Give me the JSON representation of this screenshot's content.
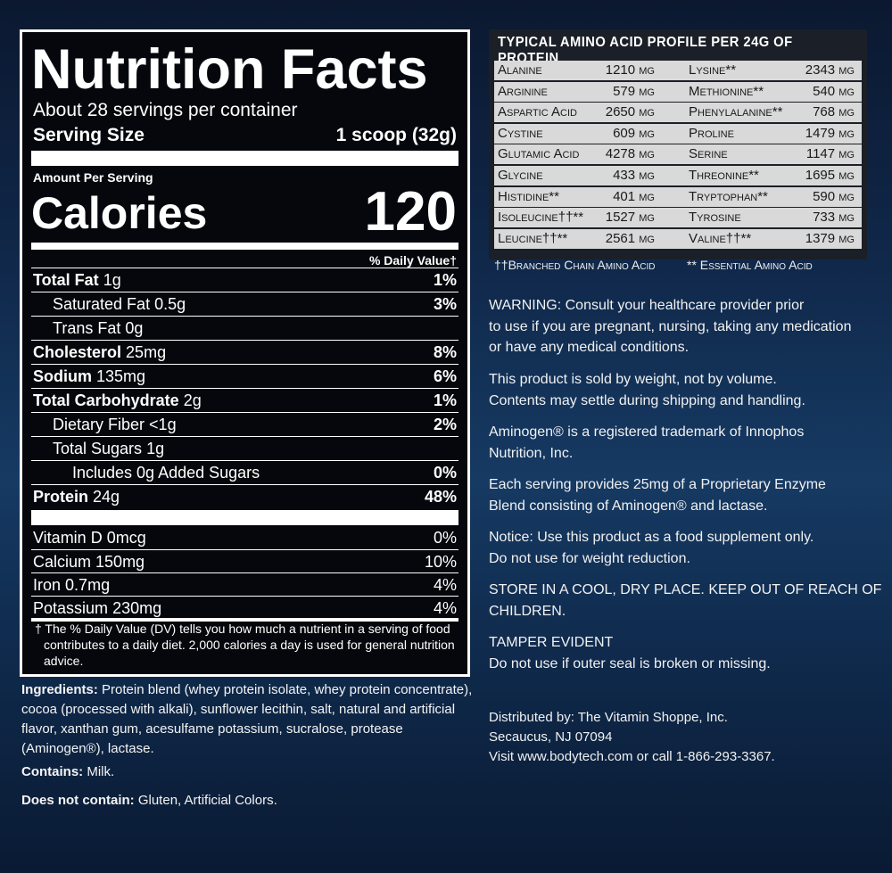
{
  "nutrition": {
    "title": "Nutrition Facts",
    "servings": "About 28 servings per container",
    "serving_size_label": "Serving Size",
    "serving_size": "1 scoop (32g)",
    "amount_per_serving": "Amount Per Serving",
    "calories_label": "Calories",
    "calories": "120",
    "dv_header": "% Daily Value†",
    "nutrients": [
      {
        "name": "Total Fat",
        "amount": "1g",
        "dv": "1%"
      },
      {
        "name": "Saturated Fat",
        "amount": "0.5g",
        "dv": "3%"
      },
      {
        "name": "Trans Fat",
        "amount": "0g",
        "dv": null
      },
      {
        "name": "Cholesterol",
        "amount": "25mg",
        "dv": "8%"
      },
      {
        "name": "Sodium",
        "amount": "135mg",
        "dv": "6%"
      },
      {
        "name": "Total Carbohydrate",
        "amount": "2g",
        "dv": "1%"
      },
      {
        "name": "Dietary Fiber",
        "amount": "<1g",
        "dv": "2%"
      },
      {
        "name": "Total Sugars",
        "amount": "1g",
        "dv": null
      },
      {
        "name": "Includes 0g Added Sugars",
        "amount": null,
        "dv": "0%"
      },
      {
        "name": "Protein",
        "amount": "24g",
        "dv": "48%"
      }
    ],
    "vitamins": [
      {
        "name": "Vitamin D",
        "amount": "0mcg",
        "dv": "0%"
      },
      {
        "name": "Calcium",
        "amount": "150mg",
        "dv": "10%"
      },
      {
        "name": "Iron",
        "amount": "0.7mg",
        "dv": "4%"
      },
      {
        "name": "Potassium",
        "amount": "230mg",
        "dv": "4%"
      }
    ],
    "footnote": "† The % Daily Value (DV) tells you how much a nutrient in a serving of food contributes to a daily diet. 2,000 calories a day is used for general nutrition advice."
  },
  "ingredients": {
    "label": "Ingredients:",
    "text": "Protein blend (whey protein isolate, whey protein concentrate), cocoa (processed with alkali), sunflower lecithin, salt, natural and artificial flavor, xanthan gum, acesulfame potassium, sucralose, protease (Aminogen®), lactase."
  },
  "contains": {
    "label": "Contains:",
    "text": "Milk."
  },
  "does_not_contain": {
    "label": "Does not contain:",
    "text": "Gluten, Artificial Colors."
  },
  "amino_profile": {
    "title": "TYPICAL AMINO ACID PROFILE PER 24G OF PROTEIN",
    "left": [
      {
        "name": "Alanine",
        "amount": "1210 mg"
      },
      {
        "name": "Arginine",
        "amount": "579 mg"
      },
      {
        "name": "Aspartic Acid",
        "amount": "2650 mg"
      },
      {
        "name": "Cystine",
        "amount": "609 mg"
      },
      {
        "name": "Glutamic Acid",
        "amount": "4278 mg"
      },
      {
        "name": "Glycine",
        "amount": "433 mg"
      },
      {
        "name": "Histidine**",
        "amount": "401 mg"
      },
      {
        "name": "Isoleucine††**",
        "amount": "1527 mg"
      },
      {
        "name": "Leucine††**",
        "amount": "2561 mg"
      }
    ],
    "right": [
      {
        "name": "Lysine**",
        "amount": "2343 mg"
      },
      {
        "name": "Methionine**",
        "amount": "540 mg"
      },
      {
        "name": "Phenylalanine**",
        "amount": "768 mg"
      },
      {
        "name": "Proline",
        "amount": "1479 mg"
      },
      {
        "name": "Serine",
        "amount": "1147 mg"
      },
      {
        "name": "Threonine**",
        "amount": "1695 mg"
      },
      {
        "name": "Tryptophan**",
        "amount": "590 mg"
      },
      {
        "name": "Tyrosine",
        "amount": "733 mg"
      },
      {
        "name": "Valine††**",
        "amount": "1379 mg"
      }
    ],
    "footnotes": [
      "††Branched Chain Amino Acid",
      "** Essential Amino Acid"
    ]
  },
  "notices": [
    [
      "WARNING: Consult your healthcare provider prior",
      "to use if you are pregnant, nursing, taking any medication",
      "or have any medical conditions."
    ],
    [
      "This product is sold by weight, not by volume.",
      "Contents may settle during shipping and handling."
    ],
    [
      "Aminogen® is a registered trademark of Innophos",
      "Nutrition, Inc."
    ],
    [
      "Each serving provides 25mg of a Proprietary Enzyme",
      "Blend consisting of Aminogen® and lactase."
    ],
    [
      "Notice: Use this product as a food supplement only.",
      "Do not use for weight reduction."
    ],
    [
      "STORE IN A COOL, DRY PLACE. KEEP OUT OF REACH OF",
      "CHILDREN."
    ],
    [
      "TAMPER EVIDENT",
      "Do not use if outer seal is broken or missing."
    ],
    [
      "Distributed by: The Vitamin Shoppe, Inc.",
      "Secaucus, NJ 07094",
      "Visit www.bodytech.com or call 1-866-293-3367."
    ]
  ]
}
